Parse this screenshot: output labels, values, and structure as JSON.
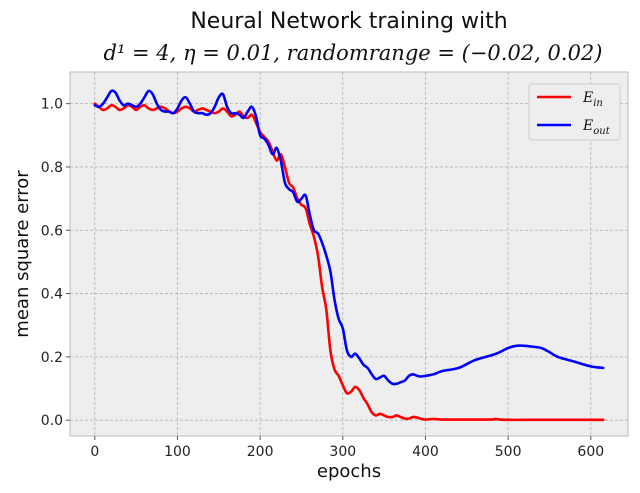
{
  "chart_data": {
    "type": "line",
    "title": "Neural Network training with",
    "subtitle": "d¹ = 4, η = 0.01, randomrange = (−0.02, 0.02)",
    "xlabel": "epochs",
    "ylabel": "mean square error",
    "xlim": [
      -30,
      645
    ],
    "ylim": [
      -0.05,
      1.1
    ],
    "xticks": [
      0,
      100,
      200,
      300,
      400,
      500,
      600
    ],
    "yticks": [
      0.0,
      0.2,
      0.4,
      0.6,
      0.8,
      1.0
    ],
    "ytick_labels": [
      "0.0",
      "0.2",
      "0.4",
      "0.6",
      "0.8",
      "1.0"
    ],
    "grid": true,
    "legend_position": "upper right",
    "series": [
      {
        "name": "E_in",
        "legend_main": "E",
        "legend_sub": "in",
        "color": "#ff0000",
        "x": [
          0,
          5,
          10,
          15,
          20,
          25,
          30,
          35,
          40,
          45,
          50,
          55,
          60,
          65,
          70,
          75,
          80,
          85,
          90,
          95,
          100,
          105,
          110,
          115,
          120,
          125,
          130,
          135,
          140,
          145,
          150,
          155,
          160,
          165,
          170,
          175,
          180,
          185,
          190,
          195,
          200,
          205,
          210,
          215,
          220,
          225,
          230,
          235,
          240,
          245,
          250,
          255,
          260,
          265,
          270,
          275,
          280,
          285,
          290,
          295,
          300,
          305,
          310,
          315,
          320,
          325,
          330,
          335,
          340,
          345,
          350,
          355,
          360,
          365,
          370,
          375,
          380,
          385,
          390,
          395,
          400,
          410,
          420,
          440,
          460,
          480,
          485,
          490,
          500,
          520,
          540,
          560,
          580,
          600,
          615
        ],
        "y": [
          1.0,
          0.99,
          0.98,
          0.985,
          0.995,
          0.99,
          0.98,
          0.985,
          0.995,
          0.99,
          0.98,
          0.99,
          0.995,
          0.985,
          0.98,
          0.985,
          0.99,
          0.985,
          0.975,
          0.97,
          0.975,
          0.985,
          0.99,
          0.985,
          0.975,
          0.98,
          0.985,
          0.98,
          0.975,
          0.97,
          0.975,
          0.985,
          0.975,
          0.96,
          0.965,
          0.975,
          0.96,
          0.955,
          0.965,
          0.94,
          0.91,
          0.895,
          0.88,
          0.85,
          0.82,
          0.84,
          0.8,
          0.75,
          0.735,
          0.7,
          0.68,
          0.67,
          0.62,
          0.58,
          0.52,
          0.42,
          0.35,
          0.22,
          0.16,
          0.14,
          0.11,
          0.085,
          0.09,
          0.105,
          0.095,
          0.07,
          0.05,
          0.025,
          0.015,
          0.02,
          0.015,
          0.01,
          0.01,
          0.015,
          0.01,
          0.005,
          0.005,
          0.01,
          0.008,
          0.004,
          0.002,
          0.004,
          0.002,
          0.002,
          0.002,
          0.002,
          0.004,
          0.002,
          0.001,
          0.001,
          0.001,
          0.001,
          0.001,
          0.001,
          0.001
        ]
      },
      {
        "name": "E_out",
        "legend_main": "E",
        "legend_sub": "out",
        "color": "#0000ff",
        "x": [
          0,
          5,
          10,
          15,
          20,
          25,
          30,
          35,
          40,
          45,
          50,
          55,
          60,
          65,
          70,
          75,
          80,
          85,
          90,
          95,
          100,
          105,
          110,
          115,
          120,
          125,
          130,
          135,
          140,
          145,
          150,
          155,
          160,
          165,
          170,
          175,
          180,
          185,
          190,
          195,
          200,
          205,
          210,
          215,
          220,
          225,
          230,
          235,
          240,
          245,
          250,
          255,
          260,
          265,
          270,
          275,
          280,
          285,
          290,
          295,
          300,
          305,
          310,
          315,
          320,
          325,
          330,
          335,
          340,
          345,
          350,
          355,
          360,
          365,
          370,
          375,
          380,
          385,
          390,
          395,
          400,
          410,
          420,
          440,
          460,
          480,
          490,
          500,
          510,
          520,
          530,
          540,
          550,
          560,
          580,
          600,
          615
        ],
        "y": [
          0.995,
          0.99,
          1.0,
          1.02,
          1.04,
          1.035,
          1.01,
          0.995,
          1.0,
          0.995,
          0.99,
          1.0,
          1.02,
          1.04,
          1.03,
          1.0,
          0.98,
          0.975,
          0.975,
          0.97,
          0.985,
          1.01,
          1.02,
          1.0,
          0.975,
          0.97,
          0.97,
          0.965,
          0.97,
          0.99,
          1.02,
          1.03,
          0.99,
          0.97,
          0.97,
          0.965,
          0.955,
          0.975,
          0.99,
          0.96,
          0.9,
          0.89,
          0.87,
          0.84,
          0.86,
          0.82,
          0.75,
          0.73,
          0.72,
          0.69,
          0.7,
          0.71,
          0.65,
          0.6,
          0.59,
          0.56,
          0.52,
          0.47,
          0.38,
          0.32,
          0.29,
          0.22,
          0.2,
          0.21,
          0.195,
          0.175,
          0.165,
          0.145,
          0.13,
          0.135,
          0.14,
          0.125,
          0.115,
          0.115,
          0.12,
          0.125,
          0.14,
          0.145,
          0.14,
          0.138,
          0.14,
          0.145,
          0.155,
          0.165,
          0.19,
          0.205,
          0.215,
          0.228,
          0.235,
          0.235,
          0.232,
          0.228,
          0.215,
          0.2,
          0.185,
          0.17,
          0.165
        ]
      }
    ]
  }
}
